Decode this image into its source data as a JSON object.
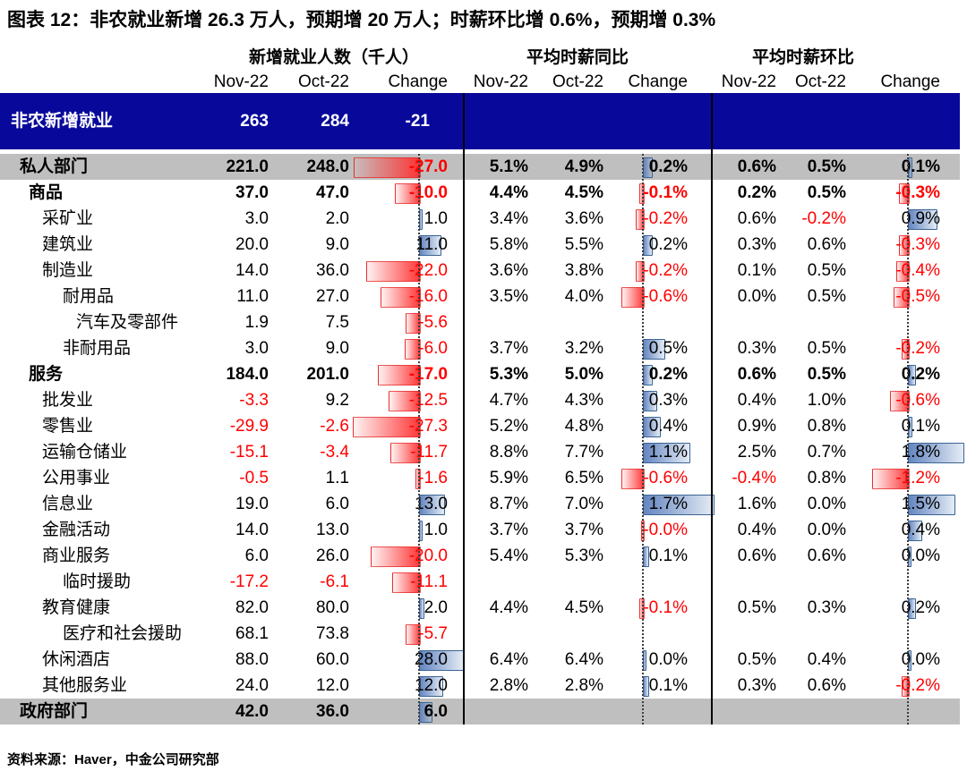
{
  "title": "图表 12：非农就业新增 26.3 万人，预期增 20 万人；时薪环比增 0.6%，预期增 0.3%",
  "source": "资料来源：Haver，中金公司研究部",
  "colors": {
    "navy_band": "#08089B",
    "gray_band": "#BFBFBF",
    "negative_red": "#FF0000",
    "bar_blue": "#5B7FBD",
    "bar_red": "#FF2D2D"
  },
  "chart_data": {
    "type": "table",
    "title": "图表 12：非农就业新增 26.3 万人，预期增 20 万人；时薪环比增 0.6%，预期增 0.3%",
    "column_groups": [
      {
        "label": "新增就业人数（千人）"
      },
      {
        "label": "平均时薪同比"
      },
      {
        "label": "平均时薪环比"
      }
    ],
    "columns": [
      "Nov-22",
      "Oct-22",
      "Change",
      "Nov-22",
      "Oct-22",
      "Change",
      "Nov-22",
      "Oct-22",
      "Change"
    ],
    "rows": [
      {
        "label": "非农新增就业",
        "indent": 0,
        "bold": true,
        "band": "navy",
        "values": [
          "263",
          "284",
          "-21",
          "",
          "",
          "",
          "",
          "",
          ""
        ],
        "chg": [
          null,
          null,
          null
        ]
      },
      {
        "label": "私人部门",
        "indent": 1,
        "bold": true,
        "band": "gray",
        "values": [
          "221.0",
          "248.0",
          "-27.0",
          "5.1%",
          "4.9%",
          "0.2%",
          "0.6%",
          "0.5%",
          "0.1%"
        ],
        "chg": [
          -27,
          0.2,
          0.1
        ]
      },
      {
        "label": "商品",
        "indent": 2,
        "bold": true,
        "band": null,
        "values": [
          "37.0",
          "47.0",
          "-10.0",
          "4.4%",
          "4.5%",
          "-0.1%",
          "0.2%",
          "0.5%",
          "-0.3%"
        ],
        "chg": [
          -10,
          -0.1,
          -0.3
        ]
      },
      {
        "label": "采矿业",
        "indent": 3,
        "bold": false,
        "band": null,
        "values": [
          "3.0",
          "2.0",
          "1.0",
          "3.4%",
          "3.6%",
          "-0.2%",
          "0.6%",
          "-0.2%",
          "0.9%"
        ],
        "chg": [
          1,
          -0.2,
          0.9
        ]
      },
      {
        "label": "建筑业",
        "indent": 3,
        "bold": false,
        "band": null,
        "values": [
          "20.0",
          "9.0",
          "11.0",
          "5.8%",
          "5.5%",
          "0.2%",
          "0.3%",
          "0.6%",
          "-0.3%"
        ],
        "chg": [
          11,
          0.2,
          -0.3
        ]
      },
      {
        "label": "制造业",
        "indent": 3,
        "bold": false,
        "band": null,
        "values": [
          "14.0",
          "36.0",
          "-22.0",
          "3.6%",
          "3.8%",
          "-0.2%",
          "0.1%",
          "0.5%",
          "-0.4%"
        ],
        "chg": [
          -22,
          -0.2,
          -0.4
        ]
      },
      {
        "label": "耐用品",
        "indent": 4,
        "bold": false,
        "band": null,
        "values": [
          "11.0",
          "27.0",
          "-16.0",
          "3.5%",
          "4.0%",
          "-0.6%",
          "0.0%",
          "0.5%",
          "-0.5%"
        ],
        "chg": [
          -16,
          -0.6,
          -0.5
        ]
      },
      {
        "label": "汽车及零部件",
        "indent": 5,
        "bold": false,
        "band": null,
        "values": [
          "1.9",
          "7.5",
          "-5.6",
          "",
          "",
          "",
          "",
          "",
          ""
        ],
        "chg": [
          -5.6,
          null,
          null
        ]
      },
      {
        "label": "非耐用品",
        "indent": 4,
        "bold": false,
        "band": null,
        "values": [
          "3.0",
          "9.0",
          "-6.0",
          "3.7%",
          "3.2%",
          "0.5%",
          "0.3%",
          "0.5%",
          "-0.2%"
        ],
        "chg": [
          -6,
          0.5,
          -0.2
        ]
      },
      {
        "label": "服务",
        "indent": 2,
        "bold": true,
        "band": null,
        "values": [
          "184.0",
          "201.0",
          "-17.0",
          "5.3%",
          "5.0%",
          "0.2%",
          "0.6%",
          "0.5%",
          "0.2%"
        ],
        "chg": [
          -17,
          0.2,
          0.2
        ]
      },
      {
        "label": "批发业",
        "indent": 3,
        "bold": false,
        "band": null,
        "values": [
          "-3.3",
          "9.2",
          "-12.5",
          "4.7%",
          "4.3%",
          "0.3%",
          "0.4%",
          "1.0%",
          "-0.6%"
        ],
        "chg": [
          -12.5,
          0.3,
          -0.6
        ]
      },
      {
        "label": "零售业",
        "indent": 3,
        "bold": false,
        "band": null,
        "values": [
          "-29.9",
          "-2.6",
          "-27.3",
          "5.2%",
          "4.8%",
          "0.4%",
          "0.9%",
          "0.8%",
          "0.1%"
        ],
        "chg": [
          -27.3,
          0.4,
          0.1
        ]
      },
      {
        "label": "运输仓储业",
        "indent": 3,
        "bold": false,
        "band": null,
        "values": [
          "-15.1",
          "-3.4",
          "-11.7",
          "8.8%",
          "7.7%",
          "1.1%",
          "2.5%",
          "0.7%",
          "1.8%"
        ],
        "chg": [
          -11.7,
          1.1,
          1.8
        ]
      },
      {
        "label": "公用事业",
        "indent": 3,
        "bold": false,
        "band": null,
        "values": [
          "-0.5",
          "1.1",
          "-1.6",
          "5.9%",
          "6.5%",
          "-0.6%",
          "-0.4%",
          "0.8%",
          "-1.2%"
        ],
        "chg": [
          -1.6,
          -0.6,
          -1.2
        ]
      },
      {
        "label": "信息业",
        "indent": 3,
        "bold": false,
        "band": null,
        "values": [
          "19.0",
          "6.0",
          "13.0",
          "8.7%",
          "7.0%",
          "1.7%",
          "1.6%",
          "0.0%",
          "1.5%"
        ],
        "chg": [
          13,
          1.7,
          1.5
        ]
      },
      {
        "label": "金融活动",
        "indent": 3,
        "bold": false,
        "band": null,
        "values": [
          "14.0",
          "13.0",
          "1.0",
          "3.7%",
          "3.7%",
          "-0.0%",
          "0.4%",
          "0.0%",
          "0.4%"
        ],
        "chg": [
          1,
          -0.02,
          0.4
        ]
      },
      {
        "label": "商业服务",
        "indent": 3,
        "bold": false,
        "band": null,
        "values": [
          "6.0",
          "26.0",
          "-20.0",
          "5.4%",
          "5.3%",
          "0.1%",
          "0.6%",
          "0.6%",
          "0.0%"
        ],
        "chg": [
          -20,
          0.1,
          0.02
        ]
      },
      {
        "label": "临时援助",
        "indent": 4,
        "bold": false,
        "band": null,
        "values": [
          "-17.2",
          "-6.1",
          "-11.1",
          "",
          "",
          "",
          "",
          "",
          ""
        ],
        "chg": [
          -11.1,
          null,
          null
        ]
      },
      {
        "label": "教育健康",
        "indent": 3,
        "bold": false,
        "band": null,
        "values": [
          "82.0",
          "80.0",
          "2.0",
          "4.4%",
          "4.5%",
          "-0.1%",
          "0.5%",
          "0.3%",
          "0.2%"
        ],
        "chg": [
          2,
          -0.1,
          0.2
        ]
      },
      {
        "label": "医疗和社会援助",
        "indent": 4,
        "bold": false,
        "band": null,
        "values": [
          "68.1",
          "73.8",
          "-5.7",
          "",
          "",
          "",
          "",
          "",
          ""
        ],
        "chg": [
          -5.7,
          null,
          null
        ]
      },
      {
        "label": "休闲酒店",
        "indent": 3,
        "bold": false,
        "band": null,
        "values": [
          "88.0",
          "60.0",
          "28.0",
          "6.4%",
          "6.4%",
          "0.0%",
          "0.5%",
          "0.4%",
          "0.0%"
        ],
        "chg": [
          28,
          0.02,
          0.02
        ]
      },
      {
        "label": "其他服务业",
        "indent": 3,
        "bold": false,
        "band": null,
        "values": [
          "24.0",
          "12.0",
          "12.0",
          "2.8%",
          "2.8%",
          "0.1%",
          "0.3%",
          "0.6%",
          "-0.2%"
        ],
        "chg": [
          12,
          0.1,
          -0.2
        ]
      },
      {
        "label": "政府部门",
        "indent": 1,
        "bold": true,
        "band": "gray",
        "values": [
          "42.0",
          "36.0",
          "6.0",
          "",
          "",
          "",
          "",
          "",
          ""
        ],
        "chg": [
          6,
          null,
          null
        ]
      }
    ]
  }
}
